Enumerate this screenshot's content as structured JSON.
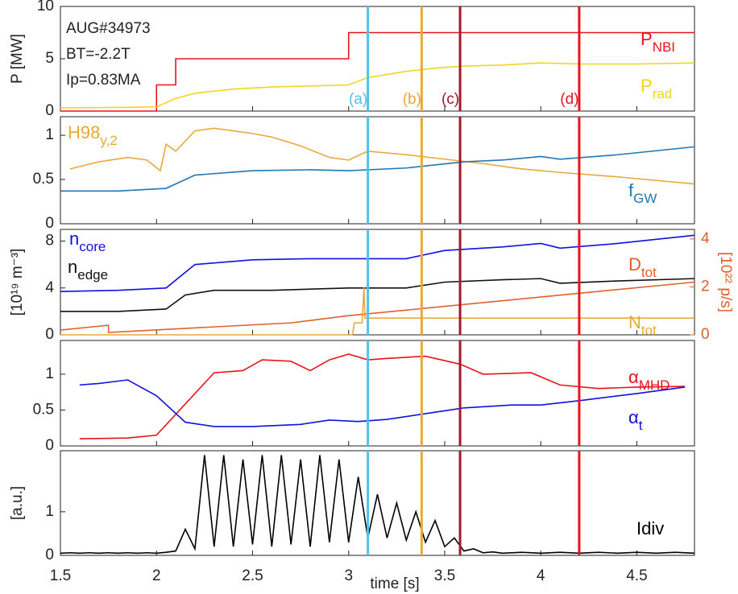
{
  "chart_data": [
    {
      "type": "line",
      "ylabel": "P [MW]",
      "ylim": [
        0,
        10
      ],
      "yticks": [
        0,
        5,
        10
      ],
      "xlim": [
        1.5,
        4.8
      ],
      "annotations": [
        "AUG#34973",
        "BT=-2.2T",
        "Ip=0.83MA"
      ],
      "markers": [
        {
          "x": 3.1,
          "label": "(a)",
          "color": "#4fc3e8"
        },
        {
          "x": 3.38,
          "label": "(b)",
          "color": "#e8a93a"
        },
        {
          "x": 3.58,
          "label": "(c)",
          "color": "#a0182e"
        },
        {
          "x": 4.2,
          "label": "(d)",
          "color": "#e8141c"
        }
      ],
      "series": [
        {
          "name": "P",
          "sub": "NBI",
          "color": "#e8141c",
          "x": [
            1.5,
            2.0,
            2.0,
            2.1,
            2.1,
            3.0,
            3.0,
            4.8
          ],
          "values": [
            0,
            0,
            2.5,
            2.5,
            5,
            5,
            7.5,
            7.5
          ]
        },
        {
          "name": "P",
          "sub": "rad",
          "color": "#f2d51e",
          "x": [
            1.5,
            1.8,
            2.0,
            2.1,
            2.2,
            2.4,
            2.6,
            2.8,
            3.0,
            3.1,
            3.2,
            3.3,
            3.45,
            3.6,
            3.8,
            4.0,
            4.2,
            4.5,
            4.8
          ],
          "values": [
            0.3,
            0.35,
            0.4,
            1.2,
            1.7,
            2.1,
            2.3,
            2.4,
            2.5,
            3.2,
            3.5,
            3.8,
            4.1,
            4.3,
            4.4,
            4.6,
            4.5,
            4.5,
            4.6
          ]
        }
      ]
    },
    {
      "type": "line",
      "ylim": [
        0,
        1.21
      ],
      "yticks": [
        0,
        0.5,
        1
      ],
      "xlim": [
        1.5,
        4.8
      ],
      "series": [
        {
          "name": "H98",
          "sub": "y,2",
          "color": "#e8a93a",
          "x": [
            1.55,
            1.7,
            1.85,
            1.95,
            2.02,
            2.05,
            2.1,
            2.2,
            2.3,
            2.5,
            2.6,
            2.75,
            2.9,
            3.0,
            3.1,
            3.3,
            3.5,
            3.7,
            3.9,
            4.1,
            4.4,
            4.8
          ],
          "values": [
            0.62,
            0.7,
            0.75,
            0.72,
            0.6,
            0.9,
            0.82,
            1.05,
            1.08,
            1.02,
            0.98,
            0.88,
            0.75,
            0.72,
            0.82,
            0.78,
            0.73,
            0.68,
            0.62,
            0.58,
            0.53,
            0.45
          ]
        },
        {
          "name": "f",
          "sub": "GW",
          "color": "#1f77b4",
          "x": [
            1.5,
            1.8,
            2.05,
            2.2,
            2.5,
            2.8,
            3.0,
            3.3,
            3.6,
            3.8,
            4.0,
            4.1,
            4.4,
            4.8
          ],
          "values": [
            0.37,
            0.37,
            0.4,
            0.55,
            0.6,
            0.61,
            0.6,
            0.63,
            0.7,
            0.72,
            0.76,
            0.73,
            0.78,
            0.87
          ]
        }
      ]
    },
    {
      "type": "line",
      "ylabel": "[10¹⁹ m⁻³]",
      "ylim": [
        0,
        9
      ],
      "yticks": [
        0,
        4,
        8
      ],
      "xlim": [
        1.5,
        4.8
      ],
      "y2label": "[10²² p/s]",
      "y2color": "#e0602a",
      "y2lim": [
        0,
        4.4
      ],
      "y2ticks": [
        0,
        2,
        4
      ],
      "series": [
        {
          "name": "n",
          "sub": "core",
          "color": "#1010e0",
          "x": [
            1.5,
            1.8,
            2.05,
            2.2,
            2.5,
            2.8,
            3.0,
            3.3,
            3.5,
            3.8,
            4.0,
            4.1,
            4.4,
            4.8
          ],
          "values": [
            3.7,
            3.8,
            4.0,
            6.0,
            6.4,
            6.5,
            6.5,
            6.5,
            7.2,
            7.5,
            7.8,
            7.4,
            7.8,
            8.5
          ]
        },
        {
          "name": "n",
          "sub": "edge",
          "color": "#111111",
          "x": [
            1.5,
            1.8,
            2.05,
            2.15,
            2.3,
            2.6,
            3.0,
            3.3,
            3.5,
            3.8,
            4.0,
            4.1,
            4.4,
            4.8
          ],
          "values": [
            2.0,
            2.0,
            2.2,
            3.4,
            3.8,
            3.8,
            4.0,
            4.0,
            4.5,
            4.7,
            4.8,
            4.4,
            4.6,
            4.8
          ]
        },
        {
          "name": "D",
          "sub": "tot",
          "color": "#e0602a",
          "axis": "y2",
          "x": [
            1.5,
            1.75,
            1.75,
            2.7,
            3.0,
            4.8
          ],
          "values": [
            0.2,
            0.4,
            0.1,
            0.5,
            0.8,
            2.2
          ]
        },
        {
          "name": "N",
          "sub": "tot",
          "color": "#e8a93a",
          "axis": "y2",
          "x": [
            1.5,
            3.02,
            3.03,
            3.07,
            3.08,
            3.085,
            4.8
          ],
          "values": [
            0,
            0,
            0.5,
            0.5,
            2.0,
            0.7,
            0.7
          ]
        }
      ]
    },
    {
      "type": "line",
      "ylim": [
        0,
        1.47
      ],
      "yticks": [
        0,
        0.5,
        1
      ],
      "xlim": [
        1.5,
        4.8
      ],
      "series": [
        {
          "name": "α",
          "sub": "MHD",
          "color": "#e8141c",
          "x": [
            1.6,
            1.85,
            2.0,
            2.3,
            2.45,
            2.55,
            2.7,
            2.8,
            2.9,
            3.0,
            3.1,
            3.2,
            3.4,
            3.58,
            3.7,
            3.95,
            4.1,
            4.3,
            4.5,
            4.75
          ],
          "values": [
            0.1,
            0.11,
            0.15,
            1.02,
            1.05,
            1.2,
            1.18,
            1.05,
            1.2,
            1.28,
            1.2,
            1.22,
            1.25,
            1.14,
            1.0,
            1.02,
            0.85,
            0.8,
            0.82,
            0.83
          ]
        },
        {
          "name": "α",
          "sub": "t",
          "color": "#1010e0",
          "x": [
            1.6,
            1.7,
            1.85,
            2.0,
            2.15,
            2.3,
            2.5,
            2.75,
            2.9,
            3.05,
            3.2,
            3.4,
            3.6,
            3.85,
            4.0,
            4.2,
            4.5,
            4.75
          ],
          "values": [
            0.85,
            0.87,
            0.92,
            0.7,
            0.33,
            0.27,
            0.27,
            0.3,
            0.36,
            0.34,
            0.37,
            0.45,
            0.53,
            0.57,
            0.57,
            0.63,
            0.73,
            0.82
          ]
        }
      ]
    },
    {
      "type": "line",
      "ylabel": "[a.u.]",
      "ylim": [
        0,
        2.4
      ],
      "yticks": [
        0,
        1
      ],
      "xlim": [
        1.5,
        4.8
      ],
      "xticks": [
        1.5,
        2,
        2.5,
        3,
        3.5,
        4,
        4.5
      ],
      "xlabel": "time [s]",
      "series": [
        {
          "name": "Idiv",
          "color": "#000000",
          "x": [
            1.5,
            1.55,
            1.6,
            1.65,
            1.7,
            1.75,
            1.8,
            1.85,
            1.9,
            1.95,
            2.0,
            2.05,
            2.1,
            2.15,
            2.2,
            2.25,
            2.3,
            2.35,
            2.4,
            2.45,
            2.5,
            2.55,
            2.6,
            2.65,
            2.7,
            2.75,
            2.8,
            2.85,
            2.9,
            2.95,
            3.0,
            3.05,
            3.1,
            3.15,
            3.2,
            3.25,
            3.3,
            3.35,
            3.4,
            3.45,
            3.5,
            3.55,
            3.6,
            3.65,
            3.7,
            3.75,
            3.8,
            3.9,
            4.0,
            4.1,
            4.2,
            4.3,
            4.4,
            4.5,
            4.6,
            4.7,
            4.8
          ],
          "values": [
            0.05,
            0.06,
            0.05,
            0.06,
            0.05,
            0.06,
            0.05,
            0.06,
            0.05,
            0.06,
            0.05,
            0.07,
            0.1,
            0.6,
            0.15,
            2.3,
            0.2,
            2.3,
            0.2,
            2.2,
            0.25,
            2.3,
            0.2,
            2.3,
            0.25,
            2.2,
            0.2,
            2.3,
            0.3,
            2.2,
            0.3,
            1.8,
            0.4,
            1.4,
            0.4,
            1.2,
            0.35,
            1.0,
            0.3,
            0.8,
            0.2,
            0.4,
            0.1,
            0.15,
            0.06,
            0.08,
            0.05,
            0.07,
            0.05,
            0.07,
            0.05,
            0.07,
            0.05,
            0.07,
            0.05,
            0.07,
            0.05
          ]
        }
      ]
    }
  ]
}
